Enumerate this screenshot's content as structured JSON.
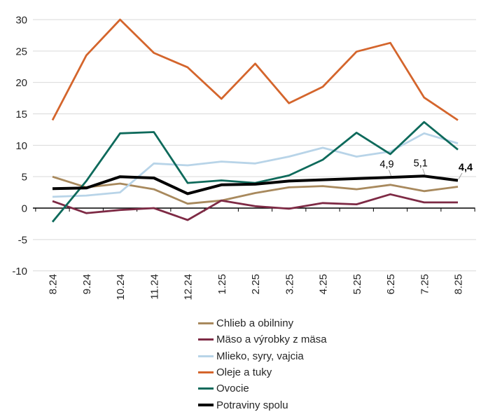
{
  "chart_data": {
    "type": "line",
    "title": "",
    "categories": [
      "8.24",
      "9.24",
      "10.24",
      "11.24",
      "12.24",
      "1.25",
      "2.25",
      "3.25",
      "4.25",
      "5.25",
      "6.25",
      "7.25",
      "8.25"
    ],
    "series": [
      {
        "name": "Chlieb a obilniny",
        "color": "#A8895D",
        "line_width": 2.8,
        "values": [
          5.0,
          3.3,
          3.9,
          3.0,
          0.7,
          1.2,
          2.4,
          3.3,
          3.5,
          3.0,
          3.7,
          2.7,
          3.4
        ]
      },
      {
        "name": "Mäso a výrobky z mäsa",
        "color": "#7E2A45",
        "line_width": 2.8,
        "values": [
          1.1,
          -0.8,
          -0.3,
          0.0,
          -1.9,
          1.2,
          0.3,
          -0.1,
          0.8,
          0.6,
          2.2,
          0.9,
          0.9
        ]
      },
      {
        "name": "Mlieko, syry, vajcia",
        "color": "#B8D4E8",
        "line_width": 2.8,
        "values": [
          1.8,
          2.0,
          2.5,
          7.1,
          6.8,
          7.4,
          7.1,
          8.2,
          9.6,
          8.2,
          9.0,
          11.9,
          10.3
        ]
      },
      {
        "name": "Oleje a tuky",
        "color": "#D4652C",
        "line_width": 2.8,
        "values": [
          14.0,
          24.3,
          30.0,
          24.7,
          22.4,
          17.4,
          23.0,
          16.7,
          19.3,
          24.9,
          26.3,
          17.6,
          14.0
        ]
      },
      {
        "name": "Ovocie",
        "color": "#0E6A5B",
        "line_width": 2.8,
        "values": [
          -2.2,
          4.3,
          11.9,
          12.1,
          4.0,
          4.4,
          4.0,
          5.2,
          7.7,
          12.0,
          8.6,
          13.7,
          9.3
        ]
      },
      {
        "name": "Potraviny spolu",
        "color": "#000000",
        "line_width": 4,
        "values": [
          3.1,
          3.2,
          5.0,
          4.8,
          2.3,
          3.7,
          3.8,
          4.3,
          4.5,
          4.7,
          4.9,
          5.1,
          4.4
        ]
      }
    ],
    "point_labels": [
      {
        "series_index": 5,
        "point_index": 10,
        "text": "4,9",
        "bold": false
      },
      {
        "series_index": 5,
        "point_index": 11,
        "text": "5,1",
        "bold": false
      },
      {
        "series_index": 5,
        "point_index": 12,
        "text": "4,4",
        "bold": true
      }
    ],
    "y_axis": {
      "min": -10,
      "max": 30,
      "step": 5,
      "tick_labels": [
        "30",
        "25",
        "20",
        "15",
        "10",
        "5",
        "0",
        "-5",
        "-10"
      ]
    },
    "x_axis": {
      "tick_labels_rotated_90": true
    },
    "grid": true,
    "legend_position": "bottom"
  },
  "colors": {
    "background": "#FFFFFF",
    "gridline": "#D9D9D9",
    "axis_line": "#000000",
    "tick_mark": "#000000",
    "axis_text": "#262626",
    "data_label_text": "#000000",
    "leader_line": "#9E9E9E"
  }
}
